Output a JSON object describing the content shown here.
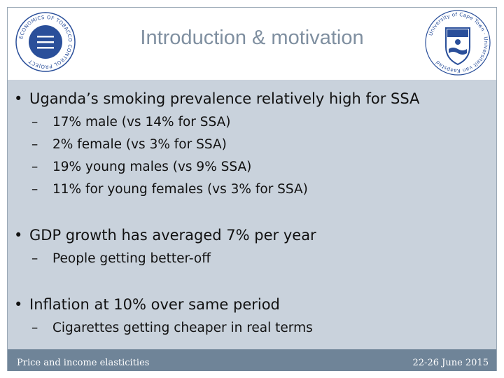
{
  "slide": {
    "title": "Introduction & motivation",
    "bullets": [
      {
        "text": "Uganda’s smoking prevalence relatively high for SSA",
        "sub": [
          "17% male (vs 14% for SSA)",
          "2% female (vs 3% for SSA)",
          "19% young males (vs 9% SSA)",
          "11% for young females (vs 3% for SSA)"
        ]
      },
      {
        "text": "GDP growth has averaged 7% per year",
        "sub": [
          "People getting better-off"
        ]
      },
      {
        "text": "Inflation at 10% over same period",
        "sub": [
          "Cigarettes getting cheaper in real terms"
        ]
      }
    ],
    "bullet_marker": "•",
    "sub_marker": "–"
  },
  "footer": {
    "left": "Price and income elasticities",
    "right": "22-26 June 2015"
  },
  "logos": {
    "left_text": "ECONOMICS OF TOBACCO CONTROL PROJECT",
    "right_text": "University of Cape Town"
  },
  "colors": {
    "title": "#7f8fa0",
    "content_bg": "#c9d2dc",
    "footer_bg": "#6f8498",
    "logo_blue": "#2a4f9a"
  }
}
